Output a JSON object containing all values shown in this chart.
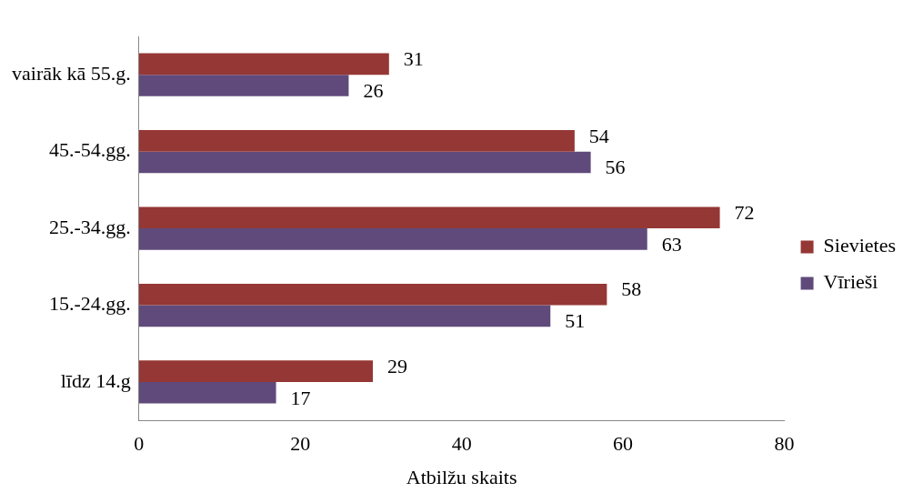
{
  "chart_data": {
    "type": "bar",
    "orientation": "horizontal",
    "xlabel": "Atbilžu skaits",
    "categories": [
      "vairāk kā 55.g.",
      "45.-54.gg.",
      "25.-34.gg.",
      "15.-24.gg.",
      "līdz 14.g"
    ],
    "series": [
      {
        "name": "Sievietes",
        "color": "#953735",
        "values": [
          31,
          54,
          72,
          58,
          29
        ]
      },
      {
        "name": "Vīrieši",
        "color": "#604a7b",
        "values": [
          26,
          56,
          63,
          51,
          17
        ]
      }
    ],
    "xlim": [
      0,
      80
    ],
    "xticks": [
      0,
      20,
      40,
      60,
      80
    ],
    "grid": false,
    "legend": "right",
    "data_labels": true
  }
}
